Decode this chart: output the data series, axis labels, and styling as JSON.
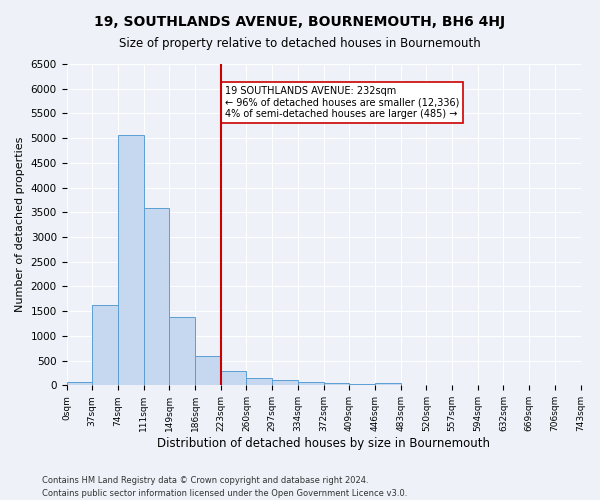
{
  "title": "19, SOUTHLANDS AVENUE, BOURNEMOUTH, BH6 4HJ",
  "subtitle": "Size of property relative to detached houses in Bournemouth",
  "xlabel": "Distribution of detached houses by size in Bournemouth",
  "ylabel": "Number of detached properties",
  "footnote1": "Contains HM Land Registry data © Crown copyright and database right 2024.",
  "footnote2": "Contains public sector information licensed under the Open Government Licence v3.0.",
  "bin_labels": [
    "0sqm",
    "37sqm",
    "74sqm",
    "111sqm",
    "149sqm",
    "186sqm",
    "223sqm",
    "260sqm",
    "297sqm",
    "334sqm",
    "372sqm",
    "409sqm",
    "446sqm",
    "483sqm",
    "520sqm",
    "557sqm",
    "594sqm",
    "632sqm",
    "669sqm",
    "706sqm",
    "743sqm"
  ],
  "bar_values": [
    75,
    1630,
    5060,
    3580,
    1390,
    590,
    300,
    155,
    110,
    75,
    55,
    35,
    55,
    0,
    0,
    0,
    0,
    0,
    0,
    0
  ],
  "bar_color": "#c5d8f0",
  "bar_edge_color": "#5a9fd4",
  "property_line_x": 6,
  "property_line_color": "#cc0000",
  "annotation_text": "19 SOUTHLANDS AVENUE: 232sqm\n← 96% of detached houses are smaller (12,336)\n4% of semi-detached houses are larger (485) →",
  "annotation_box_color": "#ffffff",
  "annotation_box_edge_color": "#cc0000",
  "ylim": [
    0,
    6500
  ],
  "yticks": [
    0,
    500,
    1000,
    1500,
    2000,
    2500,
    3000,
    3500,
    4000,
    4500,
    5000,
    5500,
    6000,
    6500
  ],
  "bg_color": "#eef2f8",
  "plot_bg_color": "#eef2f8",
  "grid_color": "#ffffff"
}
